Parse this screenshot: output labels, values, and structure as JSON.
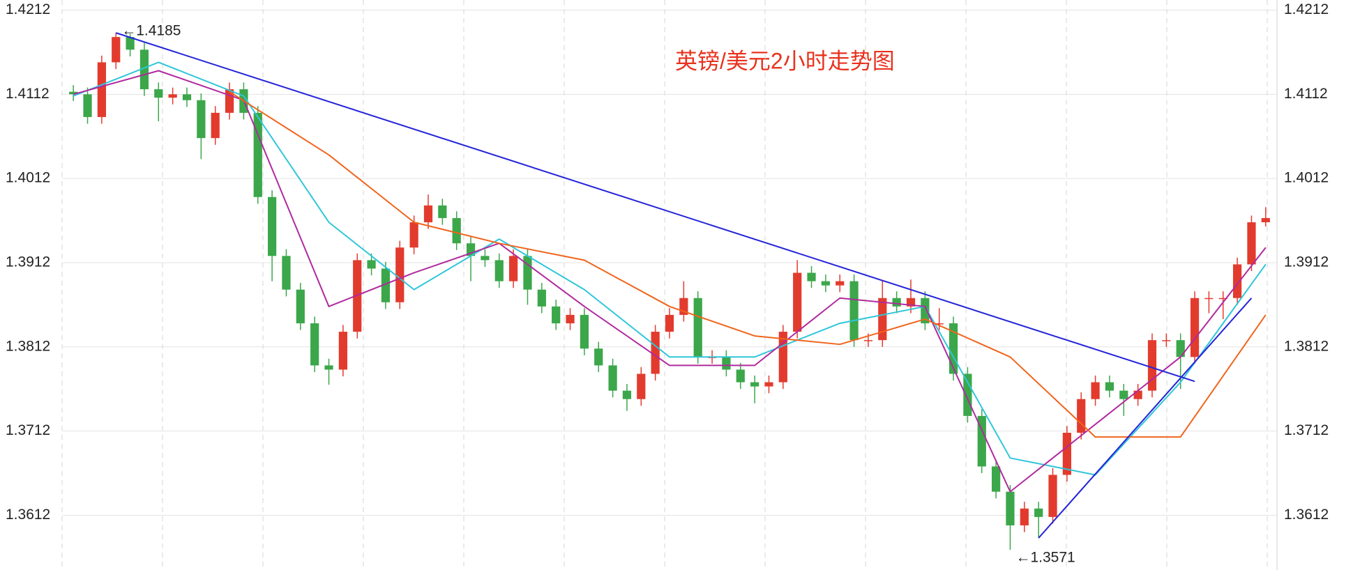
{
  "chart_data": {
    "type": "candlestick",
    "title": "英镑/美元2小时走势图",
    "categories": [
      null,
      null,
      null,
      null,
      null,
      null,
      null,
      null,
      null,
      null,
      null,
      null,
      null,
      null,
      null,
      null,
      null,
      null,
      null,
      null,
      null,
      null,
      null,
      null,
      null,
      null,
      null,
      null,
      null,
      null,
      null,
      null,
      null,
      null,
      null,
      null,
      null,
      null,
      null,
      null,
      null,
      null,
      null,
      null,
      null,
      null,
      null,
      null,
      null,
      null,
      null,
      null,
      null,
      null,
      null,
      null,
      null,
      null,
      null,
      null,
      null,
      null,
      null,
      null,
      null,
      null,
      null,
      null,
      null,
      null,
      null,
      null,
      null,
      null,
      null,
      null,
      null,
      null,
      null,
      null,
      null,
      null,
      null,
      null,
      null
    ],
    "open": [
      1.4115,
      1.4112,
      1.4085,
      1.415,
      1.418,
      1.4165,
      1.4118,
      1.4108,
      1.4112,
      1.4105,
      1.406,
      1.409,
      1.4118,
      1.409,
      1.399,
      1.392,
      1.388,
      1.384,
      1.379,
      1.3785,
      1.383,
      1.3915,
      1.3905,
      1.3865,
      1.393,
      1.396,
      1.398,
      1.3965,
      1.3935,
      1.392,
      1.3915,
      1.389,
      1.392,
      1.388,
      1.386,
      1.384,
      1.385,
      1.381,
      1.379,
      1.376,
      1.375,
      1.378,
      1.383,
      1.385,
      1.387,
      1.38,
      1.38,
      1.3785,
      1.377,
      1.3765,
      1.377,
      1.383,
      1.39,
      1.389,
      1.3885,
      1.389,
      1.382,
      1.382,
      1.387,
      1.386,
      1.387,
      1.384,
      1.384,
      1.378,
      1.373,
      1.367,
      1.364,
      1.36,
      1.362,
      1.361,
      1.366,
      1.371,
      1.375,
      1.377,
      1.376,
      1.375,
      1.376,
      1.382,
      1.382,
      1.38,
      1.387,
      1.387,
      1.387,
      1.391,
      1.396
    ],
    "high": [
      1.4123,
      1.412,
      1.4158,
      1.4185,
      1.4184,
      1.4173,
      1.4126,
      1.412,
      1.412,
      1.4113,
      1.4098,
      1.4126,
      1.4126,
      1.4098,
      1.3998,
      1.3928,
      1.3888,
      1.3848,
      1.3798,
      1.3838,
      1.3923,
      1.3923,
      1.3913,
      1.3938,
      1.3968,
      1.3993,
      1.3988,
      1.3973,
      1.3943,
      1.3928,
      1.3923,
      1.3928,
      1.3928,
      1.3888,
      1.3868,
      1.3858,
      1.3858,
      1.3818,
      1.3798,
      1.3768,
      1.3788,
      1.3838,
      1.3858,
      1.389,
      1.3878,
      1.3808,
      1.3808,
      1.3793,
      1.3778,
      1.3778,
      1.3838,
      1.3915,
      1.3908,
      1.3898,
      1.3898,
      1.3898,
      1.3828,
      1.389,
      1.3878,
      1.3892,
      1.3878,
      1.3858,
      1.3848,
      1.3788,
      1.3738,
      1.3678,
      1.3648,
      1.3628,
      1.3628,
      1.3668,
      1.3718,
      1.3758,
      1.3778,
      1.3778,
      1.3768,
      1.3768,
      1.3828,
      1.3828,
      1.3828,
      1.3878,
      1.3878,
      1.3878,
      1.3918,
      1.3968,
      1.3978
    ],
    "low": [
      1.4104,
      1.4077,
      1.4077,
      1.4142,
      1.4157,
      1.411,
      1.408,
      1.41,
      1.4097,
      1.4035,
      1.4052,
      1.4082,
      1.4082,
      1.3982,
      1.389,
      1.3872,
      1.3832,
      1.3782,
      1.3767,
      1.3777,
      1.3822,
      1.3897,
      1.3857,
      1.3857,
      1.3922,
      1.3952,
      1.3957,
      1.3927,
      1.389,
      1.3907,
      1.3882,
      1.3882,
      1.3862,
      1.3852,
      1.3832,
      1.3832,
      1.3802,
      1.3782,
      1.3752,
      1.3736,
      1.3742,
      1.3772,
      1.3822,
      1.3842,
      1.3792,
      1.3792,
      1.3777,
      1.3762,
      1.3745,
      1.3757,
      1.3762,
      1.3822,
      1.3882,
      1.3877,
      1.3877,
      1.3812,
      1.3812,
      1.3812,
      1.3852,
      1.3852,
      1.3832,
      1.3832,
      1.3772,
      1.3722,
      1.3662,
      1.3632,
      1.3571,
      1.3592,
      1.3585,
      1.3602,
      1.3652,
      1.3702,
      1.3742,
      1.3752,
      1.373,
      1.3742,
      1.3752,
      1.3812,
      1.3762,
      1.3792,
      1.3852,
      1.3845,
      1.3862,
      1.3902,
      1.3955
    ],
    "close": [
      1.4112,
      1.4085,
      1.415,
      1.418,
      1.4165,
      1.4118,
      1.4108,
      1.4112,
      1.4105,
      1.406,
      1.409,
      1.4118,
      1.409,
      1.399,
      1.392,
      1.388,
      1.384,
      1.379,
      1.3785,
      1.383,
      1.3915,
      1.3905,
      1.3865,
      1.393,
      1.396,
      1.398,
      1.3965,
      1.3935,
      1.392,
      1.3915,
      1.389,
      1.392,
      1.388,
      1.386,
      1.384,
      1.385,
      1.381,
      1.379,
      1.376,
      1.375,
      1.378,
      1.383,
      1.385,
      1.387,
      1.38,
      1.38,
      1.3785,
      1.377,
      1.3765,
      1.377,
      1.383,
      1.39,
      1.389,
      1.3885,
      1.389,
      1.382,
      1.382,
      1.387,
      1.386,
      1.387,
      1.384,
      1.384,
      1.378,
      1.373,
      1.367,
      1.364,
      1.36,
      1.362,
      1.361,
      1.366,
      1.371,
      1.375,
      1.377,
      1.376,
      1.375,
      1.376,
      1.382,
      1.382,
      1.38,
      1.387,
      1.387,
      1.387,
      1.391,
      1.396,
      1.3965
    ],
    "up_color": "#e23b2e",
    "down_color": "#3ba74a",
    "series": [
      {
        "color": "#2fc6da",
        "x": [
          0,
          6,
          12,
          18,
          24,
          30,
          36,
          42,
          48,
          54,
          60,
          66,
          72,
          78,
          84
        ],
        "values": [
          1.411,
          1.415,
          1.411,
          1.396,
          1.388,
          1.394,
          1.388,
          1.38,
          1.38,
          1.384,
          1.386,
          1.368,
          1.366,
          1.377,
          1.391
        ]
      },
      {
        "color": "#b02a9e",
        "x": [
          0,
          6,
          12,
          18,
          24,
          30,
          36,
          42,
          48,
          54,
          60,
          66,
          72,
          78,
          84
        ],
        "values": [
          1.4112,
          1.414,
          1.4105,
          1.386,
          1.39,
          1.3935,
          1.386,
          1.379,
          1.379,
          1.387,
          1.386,
          1.364,
          1.372,
          1.38,
          1.393
        ]
      },
      {
        "color": "#f0641c",
        "x": [
          11,
          18,
          24,
          30,
          36,
          42,
          48,
          54,
          60,
          66,
          72,
          78,
          84
        ],
        "values": [
          1.4115,
          1.404,
          1.396,
          1.3935,
          1.3915,
          1.386,
          1.3825,
          1.3815,
          1.3845,
          1.38,
          1.3705,
          1.3705,
          1.385
        ]
      }
    ],
    "trendlines": [
      {
        "color": "#2424d8",
        "x": [
          3,
          79
        ],
        "values": [
          1.4185,
          1.3771
        ]
      },
      {
        "color": "#2424d8",
        "x": [
          68,
          83
        ],
        "values": [
          1.3585,
          1.387
        ]
      }
    ],
    "annotations": [
      {
        "text": "←1.4185",
        "x": 3,
        "y": 1.4185
      },
      {
        "text": "←1.3571",
        "x": 66,
        "y": 1.3571
      }
    ],
    "ylim": [
      1.3547,
      1.4224
    ],
    "yticks": [
      1.4212,
      1.4112,
      1.4012,
      1.3912,
      1.3812,
      1.3712,
      1.3612
    ],
    "grid": true
  }
}
